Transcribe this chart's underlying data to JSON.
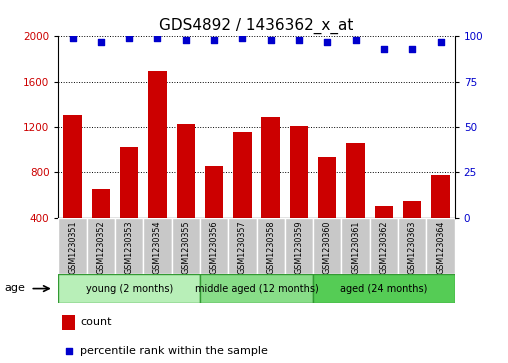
{
  "title": "GDS4892 / 1436362_x_at",
  "samples": [
    "GSM1230351",
    "GSM1230352",
    "GSM1230353",
    "GSM1230354",
    "GSM1230355",
    "GSM1230356",
    "GSM1230357",
    "GSM1230358",
    "GSM1230359",
    "GSM1230360",
    "GSM1230361",
    "GSM1230362",
    "GSM1230363",
    "GSM1230364"
  ],
  "counts": [
    1310,
    650,
    1020,
    1690,
    1230,
    860,
    1160,
    1290,
    1205,
    940,
    1060,
    500,
    545,
    780
  ],
  "percentiles": [
    99,
    97,
    99,
    99,
    98,
    98,
    99,
    98,
    98,
    97,
    98,
    93,
    93,
    97
  ],
  "ylim_left": [
    400,
    2000
  ],
  "ylim_right": [
    0,
    100
  ],
  "yticks_left": [
    400,
    800,
    1200,
    1600,
    2000
  ],
  "yticks_right": [
    0,
    25,
    50,
    75,
    100
  ],
  "groups": [
    {
      "label": "young (2 months)",
      "start": 0,
      "end": 5,
      "color": "#b8efb8"
    },
    {
      "label": "middle aged (12 months)",
      "start": 5,
      "end": 9,
      "color": "#88dd88"
    },
    {
      "label": "aged (24 months)",
      "start": 9,
      "end": 14,
      "color": "#55cc55"
    }
  ],
  "bar_color": "#cc0000",
  "dot_color": "#0000cc",
  "tick_color_gray": "#d3d3d3",
  "title_fontsize": 11,
  "axis_label_color_left": "#cc0000",
  "axis_label_color_right": "#0000cc",
  "legend_count_color": "#cc0000",
  "legend_percentile_color": "#0000cc",
  "label_box_color": "#c8c8c8",
  "group_border_color": "#339933"
}
